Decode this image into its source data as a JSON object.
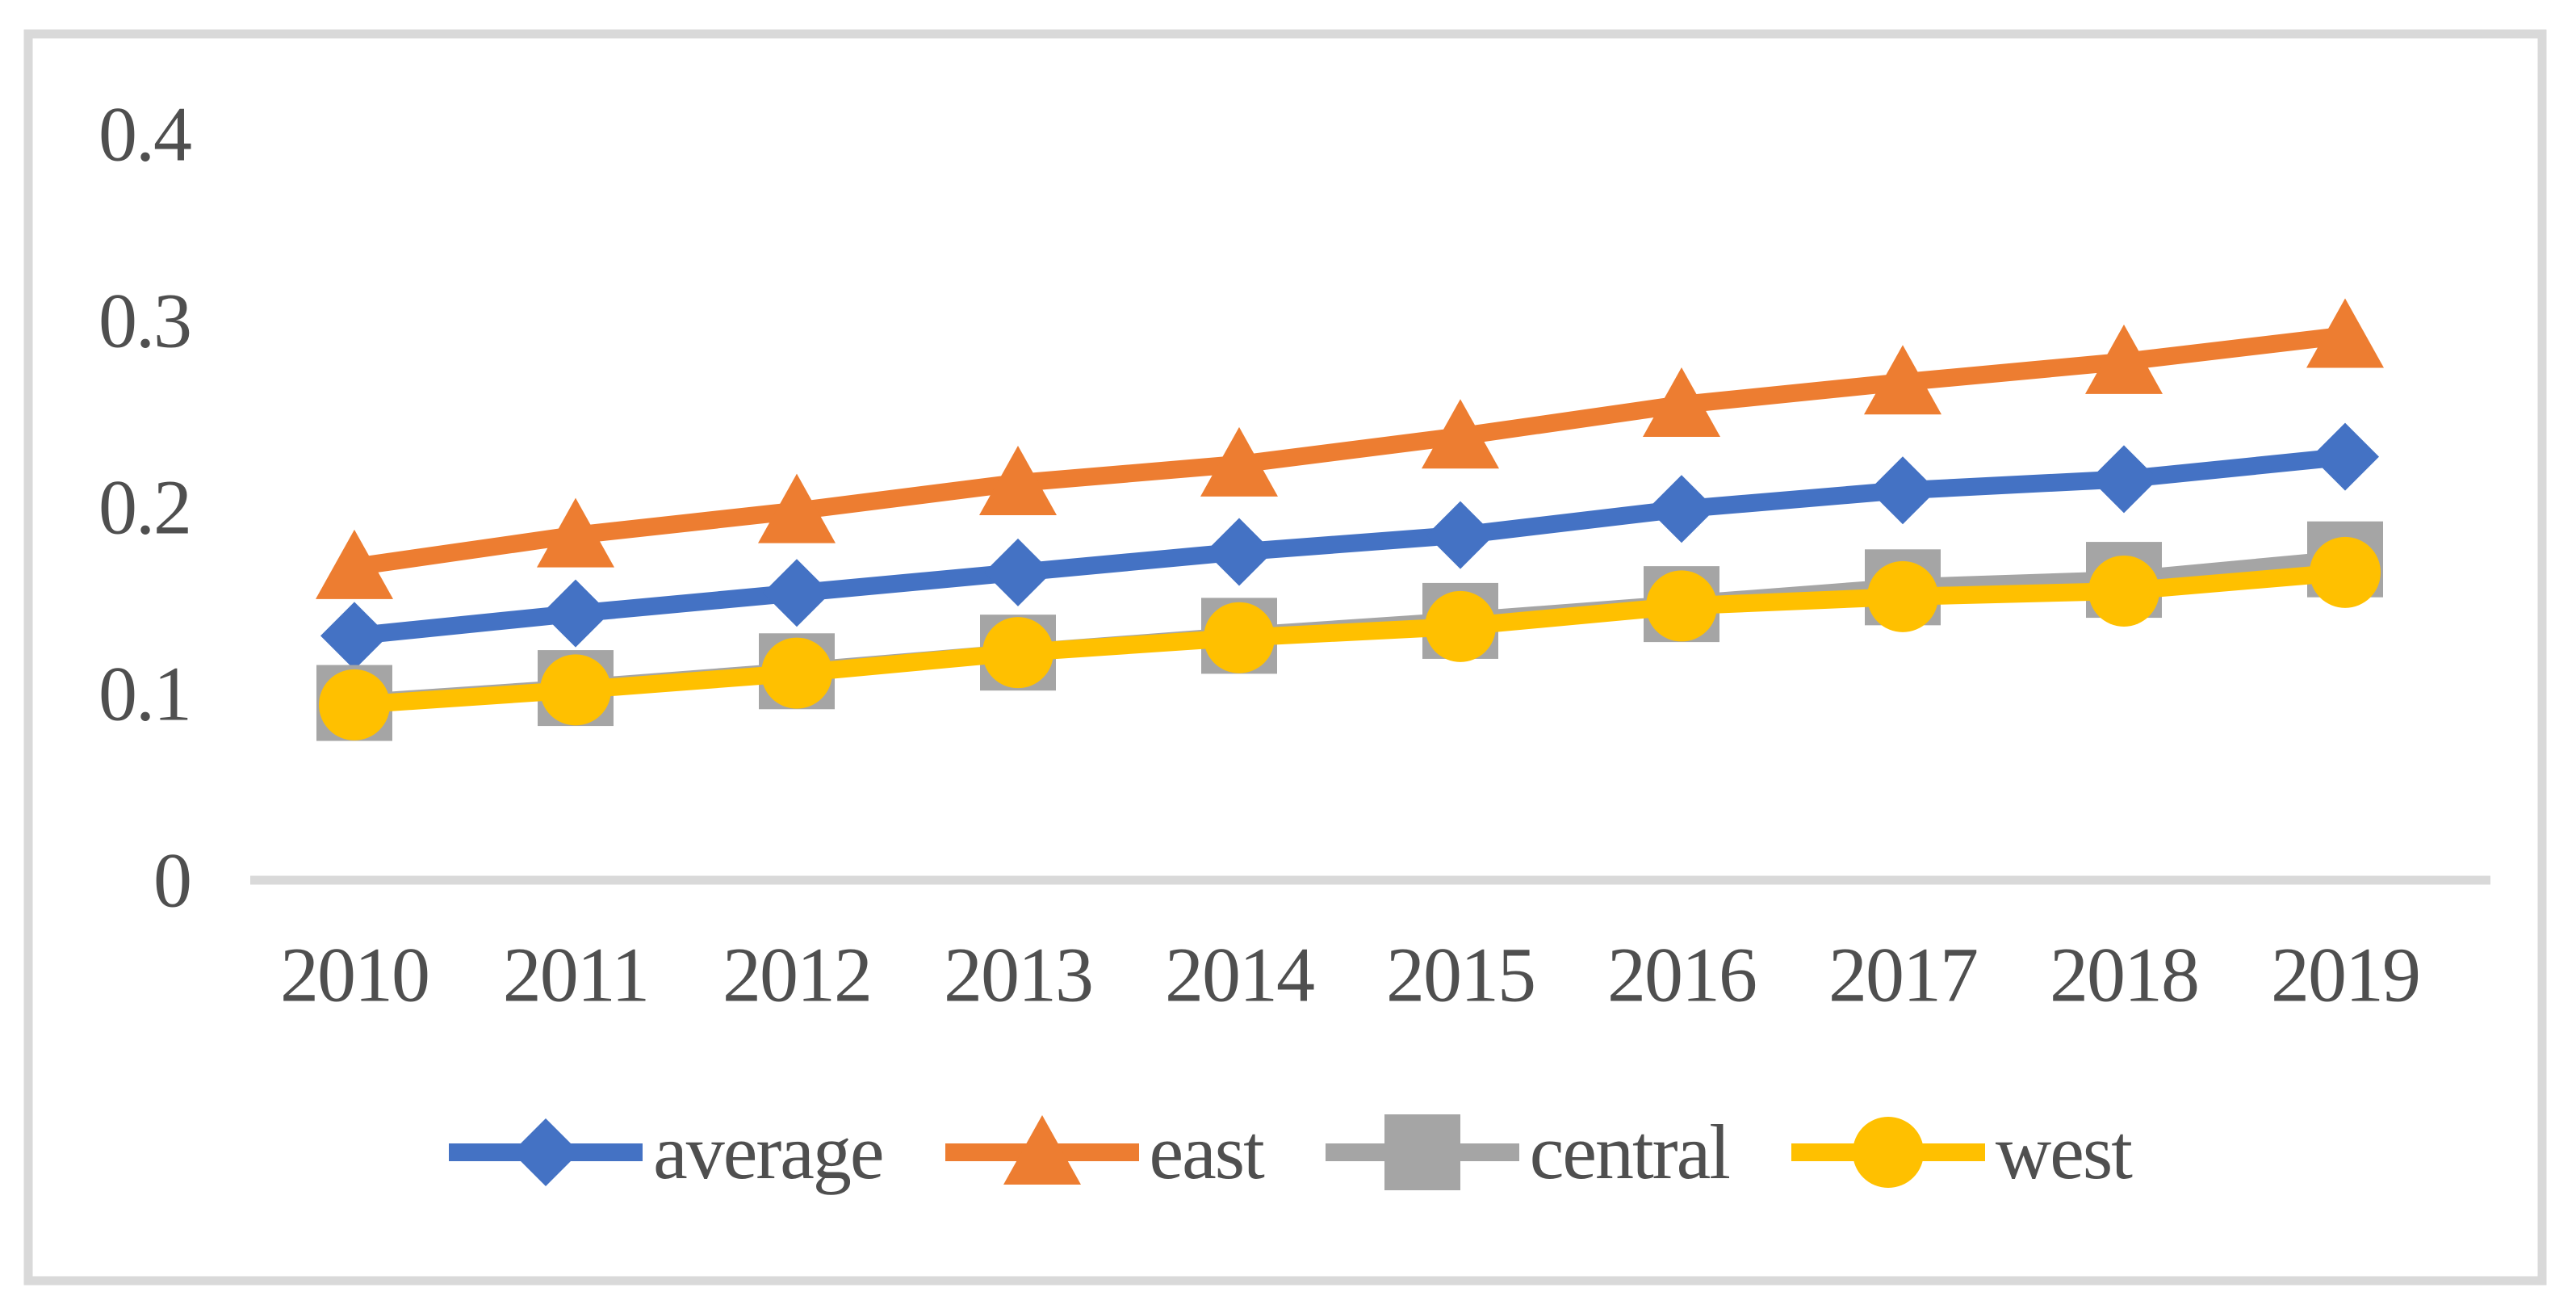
{
  "chart_data": {
    "type": "line",
    "title": "",
    "categories": [
      "2010",
      "2011",
      "2012",
      "2013",
      "2014",
      "2015",
      "2016",
      "2017",
      "2018",
      "2019"
    ],
    "series": [
      {
        "name": "average",
        "color": "#4472C4",
        "marker": "diamond",
        "values": [
          0.131,
          0.143,
          0.154,
          0.165,
          0.176,
          0.185,
          0.199,
          0.209,
          0.215,
          0.227
        ]
      },
      {
        "name": "east",
        "color": "#ED7D31",
        "marker": "triangle",
        "values": [
          0.168,
          0.185,
          0.198,
          0.213,
          0.223,
          0.238,
          0.255,
          0.267,
          0.278,
          0.292
        ]
      },
      {
        "name": "central",
        "color": "#A5A5A5",
        "marker": "square",
        "values": [
          0.095,
          0.103,
          0.112,
          0.122,
          0.131,
          0.139,
          0.148,
          0.157,
          0.161,
          0.172
        ]
      },
      {
        "name": "west",
        "color": "#FFC000",
        "marker": "circle",
        "values": [
          0.094,
          0.102,
          0.111,
          0.122,
          0.13,
          0.136,
          0.147,
          0.152,
          0.155,
          0.165
        ]
      }
    ],
    "xlabel": "",
    "ylabel": "",
    "ylim": [
      0,
      0.4
    ],
    "yticks": [
      0,
      0.1,
      0.2,
      0.3,
      0.4
    ],
    "ytick_labels": [
      "0",
      "0.1",
      "0.2",
      "0.3",
      "0.4"
    ],
    "grid": false,
    "legend_position": "bottom",
    "colors": {
      "frame": "#D9D9D9",
      "axis_line": "#D9D9D9",
      "tick_text": "#4f4f4f"
    }
  }
}
